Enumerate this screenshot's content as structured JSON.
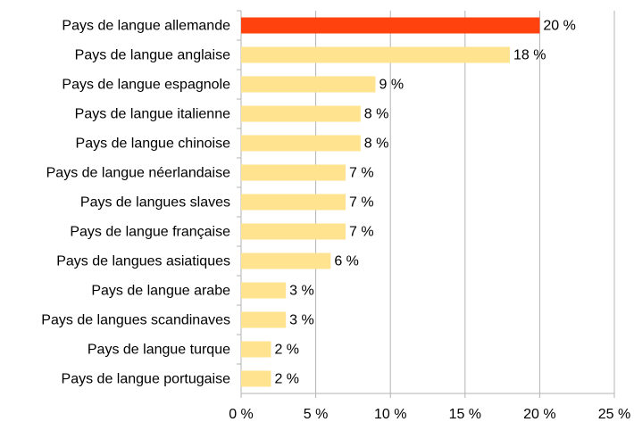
{
  "chart_data": {
    "type": "bar",
    "orientation": "horizontal",
    "categories": [
      "Pays de langue allemande",
      "Pays de langue anglaise",
      "Pays de langue espagnole",
      "Pays de langue italienne",
      "Pays de langue chinoise",
      "Pays de langue néerlandaise",
      "Pays de langues slaves",
      "Pays de langue française",
      "Pays de langues asiatiques",
      "Pays de langue arabe",
      "Pays de langues scandinaves",
      "Pays de langue turque",
      "Pays de langue portugaise"
    ],
    "values": [
      20,
      18,
      9,
      8,
      8,
      7,
      7,
      7,
      6,
      3,
      3,
      2,
      2
    ],
    "value_labels": [
      "20 %",
      "18 %",
      "9 %",
      "8 %",
      "8 %",
      "7 %",
      "7 %",
      "7 %",
      "6 %",
      "3 %",
      "3 %",
      "2 %",
      "2 %"
    ],
    "colors": [
      "#ff420e",
      "#ffe38f",
      "#ffe38f",
      "#ffe38f",
      "#ffe38f",
      "#ffe38f",
      "#ffe38f",
      "#ffe38f",
      "#ffe38f",
      "#ffe38f",
      "#ffe38f",
      "#ffe38f",
      "#ffe38f"
    ],
    "xlim": [
      0,
      25
    ],
    "xticks": [
      {
        "value": 0,
        "label": "0 %"
      },
      {
        "value": 5,
        "label": "5 %"
      },
      {
        "value": 10,
        "label": "10 %"
      },
      {
        "value": 15,
        "label": "15 %"
      },
      {
        "value": 20,
        "label": "20 %"
      },
      {
        "value": 25,
        "label": "25 %"
      }
    ],
    "grid": true
  }
}
